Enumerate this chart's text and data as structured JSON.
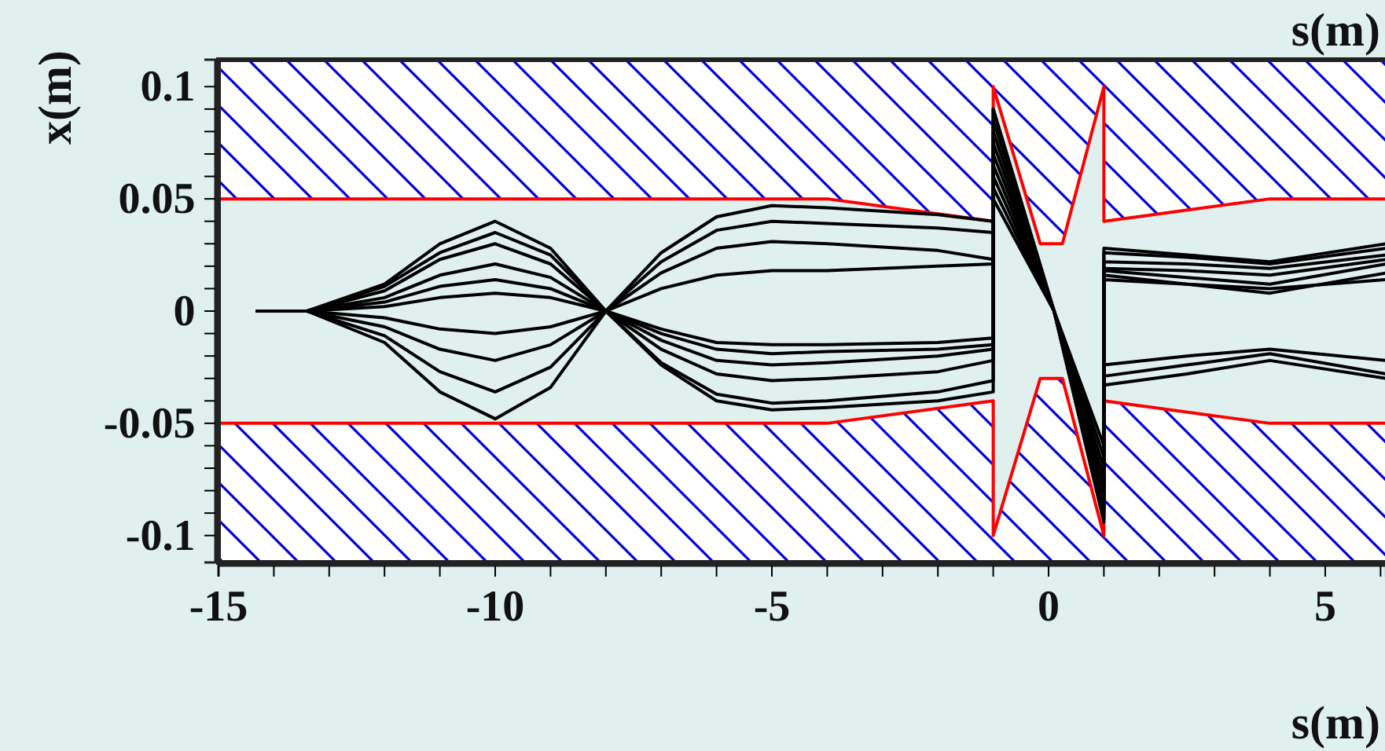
{
  "chart_data": {
    "type": "line",
    "xlabel": "s(m)",
    "ylabel": "x(m)",
    "annotations": [
      "s(m)"
    ],
    "xlim": [
      -15,
      6.1
    ],
    "ylim": [
      -0.112,
      0.112
    ],
    "xticks": [
      -15,
      {
        "value": -14,
        "label": null
      },
      {
        "value": -13,
        "label": null
      },
      {
        "value": -12,
        "label": null
      },
      {
        "value": -11,
        "label": null
      },
      -10,
      {
        "value": -9,
        "label": null
      },
      {
        "value": -8,
        "label": null
      },
      {
        "value": -7,
        "label": null
      },
      {
        "value": -6,
        "label": null
      },
      -5,
      {
        "value": -4,
        "label": null
      },
      {
        "value": -3,
        "label": null
      },
      {
        "value": -2,
        "label": null
      },
      {
        "value": -1,
        "label": null
      },
      0,
      {
        "value": 1,
        "label": null
      },
      {
        "value": 2,
        "label": null
      },
      {
        "value": 3,
        "label": null
      },
      {
        "value": 4,
        "label": null
      },
      5,
      {
        "value": 6,
        "label": null
      }
    ],
    "yticks": [
      -0.1,
      {
        "value": -0.09,
        "label": null
      },
      {
        "value": -0.08,
        "label": null
      },
      {
        "value": -0.07,
        "label": null
      },
      {
        "value": -0.06,
        "label": null
      },
      -0.05,
      {
        "value": -0.04,
        "label": null
      },
      {
        "value": -0.03,
        "label": null
      },
      {
        "value": -0.02,
        "label": null
      },
      {
        "value": -0.01,
        "label": null
      },
      0,
      {
        "value": 0.01,
        "label": null
      },
      {
        "value": 0.02,
        "label": null
      },
      {
        "value": 0.03,
        "label": null
      },
      {
        "value": 0.04,
        "label": null
      },
      0.05,
      {
        "value": 0.06,
        "label": null
      },
      {
        "value": 0.07,
        "label": null
      },
      {
        "value": 0.08,
        "label": null
      },
      {
        "value": 0.09,
        "label": null
      },
      0.1
    ],
    "grid": false,
    "legend": false,
    "marker": "none",
    "line_style": "solid",
    "x": [
      -14.3,
      -13.4,
      -12,
      -11,
      -10,
      -9,
      -8,
      -7,
      -6,
      -5,
      -4,
      -2,
      -1,
      -1,
      0.1,
      1,
      1,
      2.5,
      4,
      6.1
    ],
    "series": [
      {
        "type": "line",
        "color": "#ff0000",
        "x": [
          -15,
          -4,
          -1,
          -1,
          -0.15,
          0.25,
          1,
          1,
          4,
          6.1
        ],
        "values": [
          0.05,
          0.05,
          0.04,
          0.1,
          0.03,
          0.03,
          0.1,
          0.04,
          0.05,
          0.05
        ],
        "lower": [
          0.05,
          0.05,
          0.04,
          0.1,
          0.03,
          0.03,
          0.1,
          0.04,
          0.05,
          0.05
        ],
        "upper": [
          0.112,
          0.112,
          0.112,
          0.112,
          0.112,
          0.112,
          0.112,
          0.112,
          0.112,
          0.112
        ]
      },
      {
        "type": "line",
        "color": "#ff0000",
        "x": [
          -15,
          -4,
          -1,
          -1,
          -0.15,
          0.25,
          1,
          1,
          4,
          6.1
        ],
        "values": [
          -0.05,
          -0.05,
          -0.04,
          -0.1,
          -0.03,
          -0.03,
          -0.1,
          -0.04,
          -0.05,
          -0.05
        ],
        "lower": [
          -0.112,
          -0.112,
          -0.112,
          -0.112,
          -0.112,
          -0.112,
          -0.112,
          -0.112,
          -0.112,
          -0.112
        ],
        "upper": [
          -0.05,
          -0.05,
          -0.04,
          -0.1,
          -0.03,
          -0.03,
          -0.1,
          -0.04,
          -0.05,
          -0.05
        ]
      },
      {
        "color": "#000000",
        "values": [
          0,
          0,
          0.012,
          0.03,
          0.04,
          0.028,
          0,
          -0.024,
          -0.04,
          -0.044,
          -0.043,
          -0.04,
          -0.036,
          0.09,
          0,
          -0.094,
          0.028,
          0.025,
          0.022,
          0.03
        ]
      },
      {
        "color": "#000000",
        "values": [
          0,
          0,
          0.011,
          0.026,
          0.035,
          0.025,
          0,
          -0.023,
          -0.037,
          -0.041,
          -0.04,
          -0.036,
          -0.031,
          0.075,
          0,
          -0.085,
          0.026,
          0.024,
          0.021,
          0.028
        ]
      },
      {
        "color": "#000000",
        "values": [
          0,
          0,
          0.009,
          0.023,
          0.03,
          0.021,
          0,
          -0.017,
          -0.028,
          -0.031,
          -0.03,
          -0.027,
          -0.022,
          0.065,
          0,
          -0.075,
          0.022,
          0.021,
          0.019,
          0.025
        ]
      },
      {
        "color": "#000000",
        "values": [
          0,
          0,
          0.006,
          0.016,
          0.021,
          0.015,
          0,
          -0.013,
          -0.022,
          -0.024,
          -0.023,
          -0.02,
          -0.017,
          0.06,
          0,
          -0.07,
          0.019,
          0.018,
          0.016,
          0.023
        ]
      },
      {
        "color": "#000000",
        "values": [
          0,
          0,
          0.004,
          0.011,
          0.014,
          0.01,
          0,
          -0.01,
          -0.017,
          -0.019,
          -0.018,
          -0.017,
          -0.015,
          0.055,
          0,
          -0.065,
          0.018,
          0.015,
          0.012,
          0.021
        ]
      },
      {
        "color": "#000000",
        "values": [
          0,
          0,
          0.002,
          0.006,
          0.008,
          0.006,
          0,
          -0.008,
          -0.014,
          -0.015,
          -0.015,
          -0.014,
          -0.012,
          0.05,
          0,
          -0.06,
          0.016,
          0.012,
          0.008,
          0.017
        ]
      },
      {
        "color": "#000000",
        "values": [
          0,
          0,
          -0.003,
          -0.008,
          -0.01,
          -0.007,
          0,
          0.01,
          0.016,
          0.018,
          0.018,
          0.02,
          0.021,
          0.07,
          0,
          -0.08,
          -0.024,
          -0.02,
          -0.017,
          -0.022
        ]
      },
      {
        "color": "#000000",
        "values": [
          0,
          0,
          -0.007,
          -0.017,
          -0.022,
          -0.015,
          0,
          0.017,
          0.028,
          0.031,
          0.03,
          0.027,
          0.023,
          0.08,
          0,
          -0.088,
          -0.029,
          -0.024,
          -0.019,
          -0.028
        ]
      },
      {
        "color": "#000000",
        "values": [
          0,
          0,
          -0.011,
          -0.027,
          -0.036,
          -0.025,
          0,
          0.022,
          0.036,
          0.04,
          0.039,
          0.037,
          0.035,
          0.085,
          0,
          -0.09,
          -0.033,
          -0.028,
          -0.022,
          -0.03
        ]
      },
      {
        "color": "#000000",
        "values": [
          0,
          0,
          -0.014,
          -0.036,
          -0.048,
          -0.034,
          0,
          0.026,
          0.042,
          0.047,
          0.046,
          0.043,
          0.04,
          0.09,
          0,
          -0.093,
          0.014,
          0.012,
          0.01,
          0.014
        ]
      }
    ]
  }
}
